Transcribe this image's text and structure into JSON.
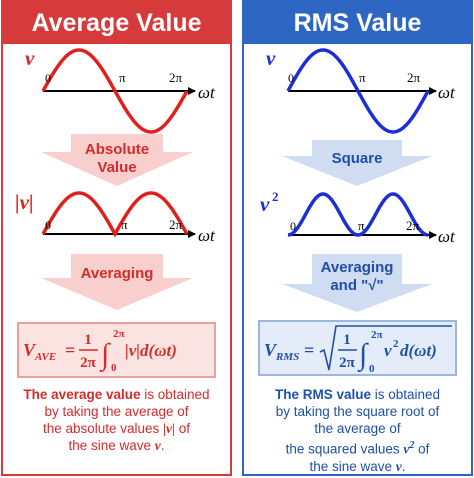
{
  "colors": {
    "red": "#d63a3a",
    "blue": "#2e66c4",
    "wave_red": "#e1201d",
    "wave_blue": "#1c2fd6",
    "pink_box": "#fbe3e1",
    "light_blue_box": "#e3ecf8"
  },
  "average": {
    "title": "Average Value",
    "wave_label": "v",
    "abs_wave_label": "|v|",
    "zero": "0",
    "pi": "π",
    "two_pi": "2π",
    "axis": "ωt",
    "step1_line1": "Absolute",
    "step1_line2": "Value",
    "step2": "Averaging",
    "formula_lhs": "V",
    "formula_sub": "AVE",
    "formula_eq": "=",
    "formula_num": "1",
    "formula_den": "2π",
    "formula_upper": "2π",
    "formula_lower": "0",
    "formula_body": "|v|d(ωt)",
    "desc_bold": "The average value",
    "desc_rest1": " is obtained",
    "desc_line2": "by taking the average of",
    "desc_line3_pre": "the absolute values ",
    "desc_line3_var": "|v|",
    "desc_line3_post": " of",
    "desc_line4_pre": "the sine wave ",
    "desc_line4_var": "v",
    "desc_line4_post": "."
  },
  "rms": {
    "title": "RMS Value",
    "wave_label": "v",
    "sq_wave_label": "v",
    "sq_exp": "2",
    "zero": "0",
    "pi": "π",
    "two_pi": "2π",
    "axis": "ωt",
    "step1": "Square",
    "step2_line1": "Averaging",
    "step2_line2": "and \"√\"",
    "formula_lhs": "V",
    "formula_sub": "RMS",
    "formula_eq": "=",
    "formula_num": "1",
    "formula_den": "2π",
    "formula_upper": "2π",
    "formula_lower": "0",
    "formula_body": "v",
    "formula_exp": "2",
    "formula_body2": "d(ωt)",
    "desc_bold": "The RMS value",
    "desc_rest1": " is obtained",
    "desc_line2": "by taking the square root of",
    "desc_line3": "the average of",
    "desc_line4_pre": "the squared values ",
    "desc_line4_var": "v",
    "desc_line4_exp": "2",
    "desc_line4_post": " of",
    "desc_line5_pre": "the sine wave ",
    "desc_line5_var": "v",
    "desc_line5_post": "."
  }
}
